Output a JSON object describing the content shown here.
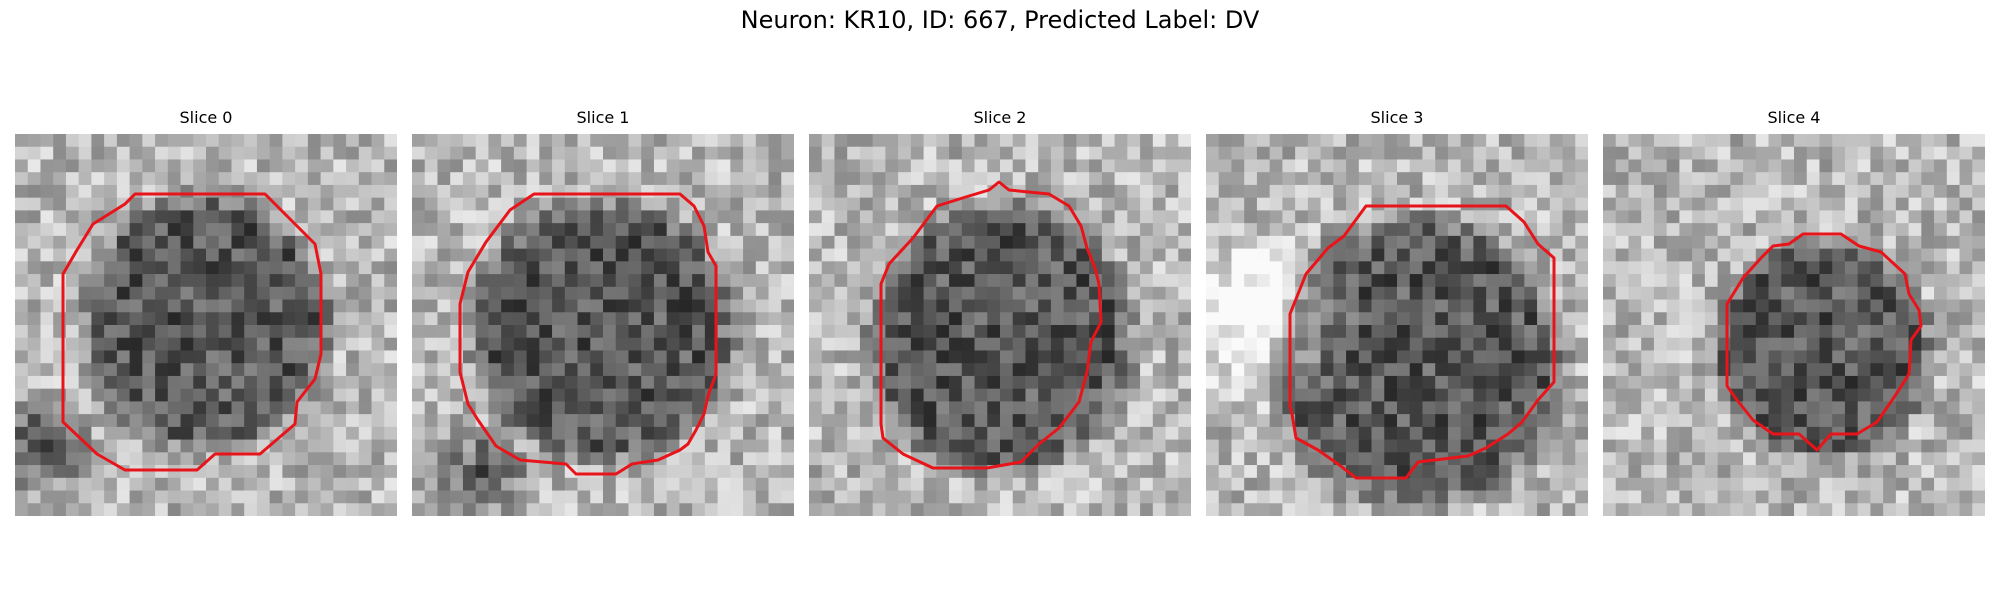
{
  "figure": {
    "title": "Neuron: KR10, ID: 667, Predicted Label: DV"
  },
  "colors": {
    "contour": "#e8141a",
    "colormap": "grayscale"
  },
  "panels": [
    {
      "title": "Slice 0"
    },
    {
      "title": "Slice 1"
    },
    {
      "title": "Slice 2"
    },
    {
      "title": "Slice 3"
    },
    {
      "title": "Slice 4"
    }
  ]
}
